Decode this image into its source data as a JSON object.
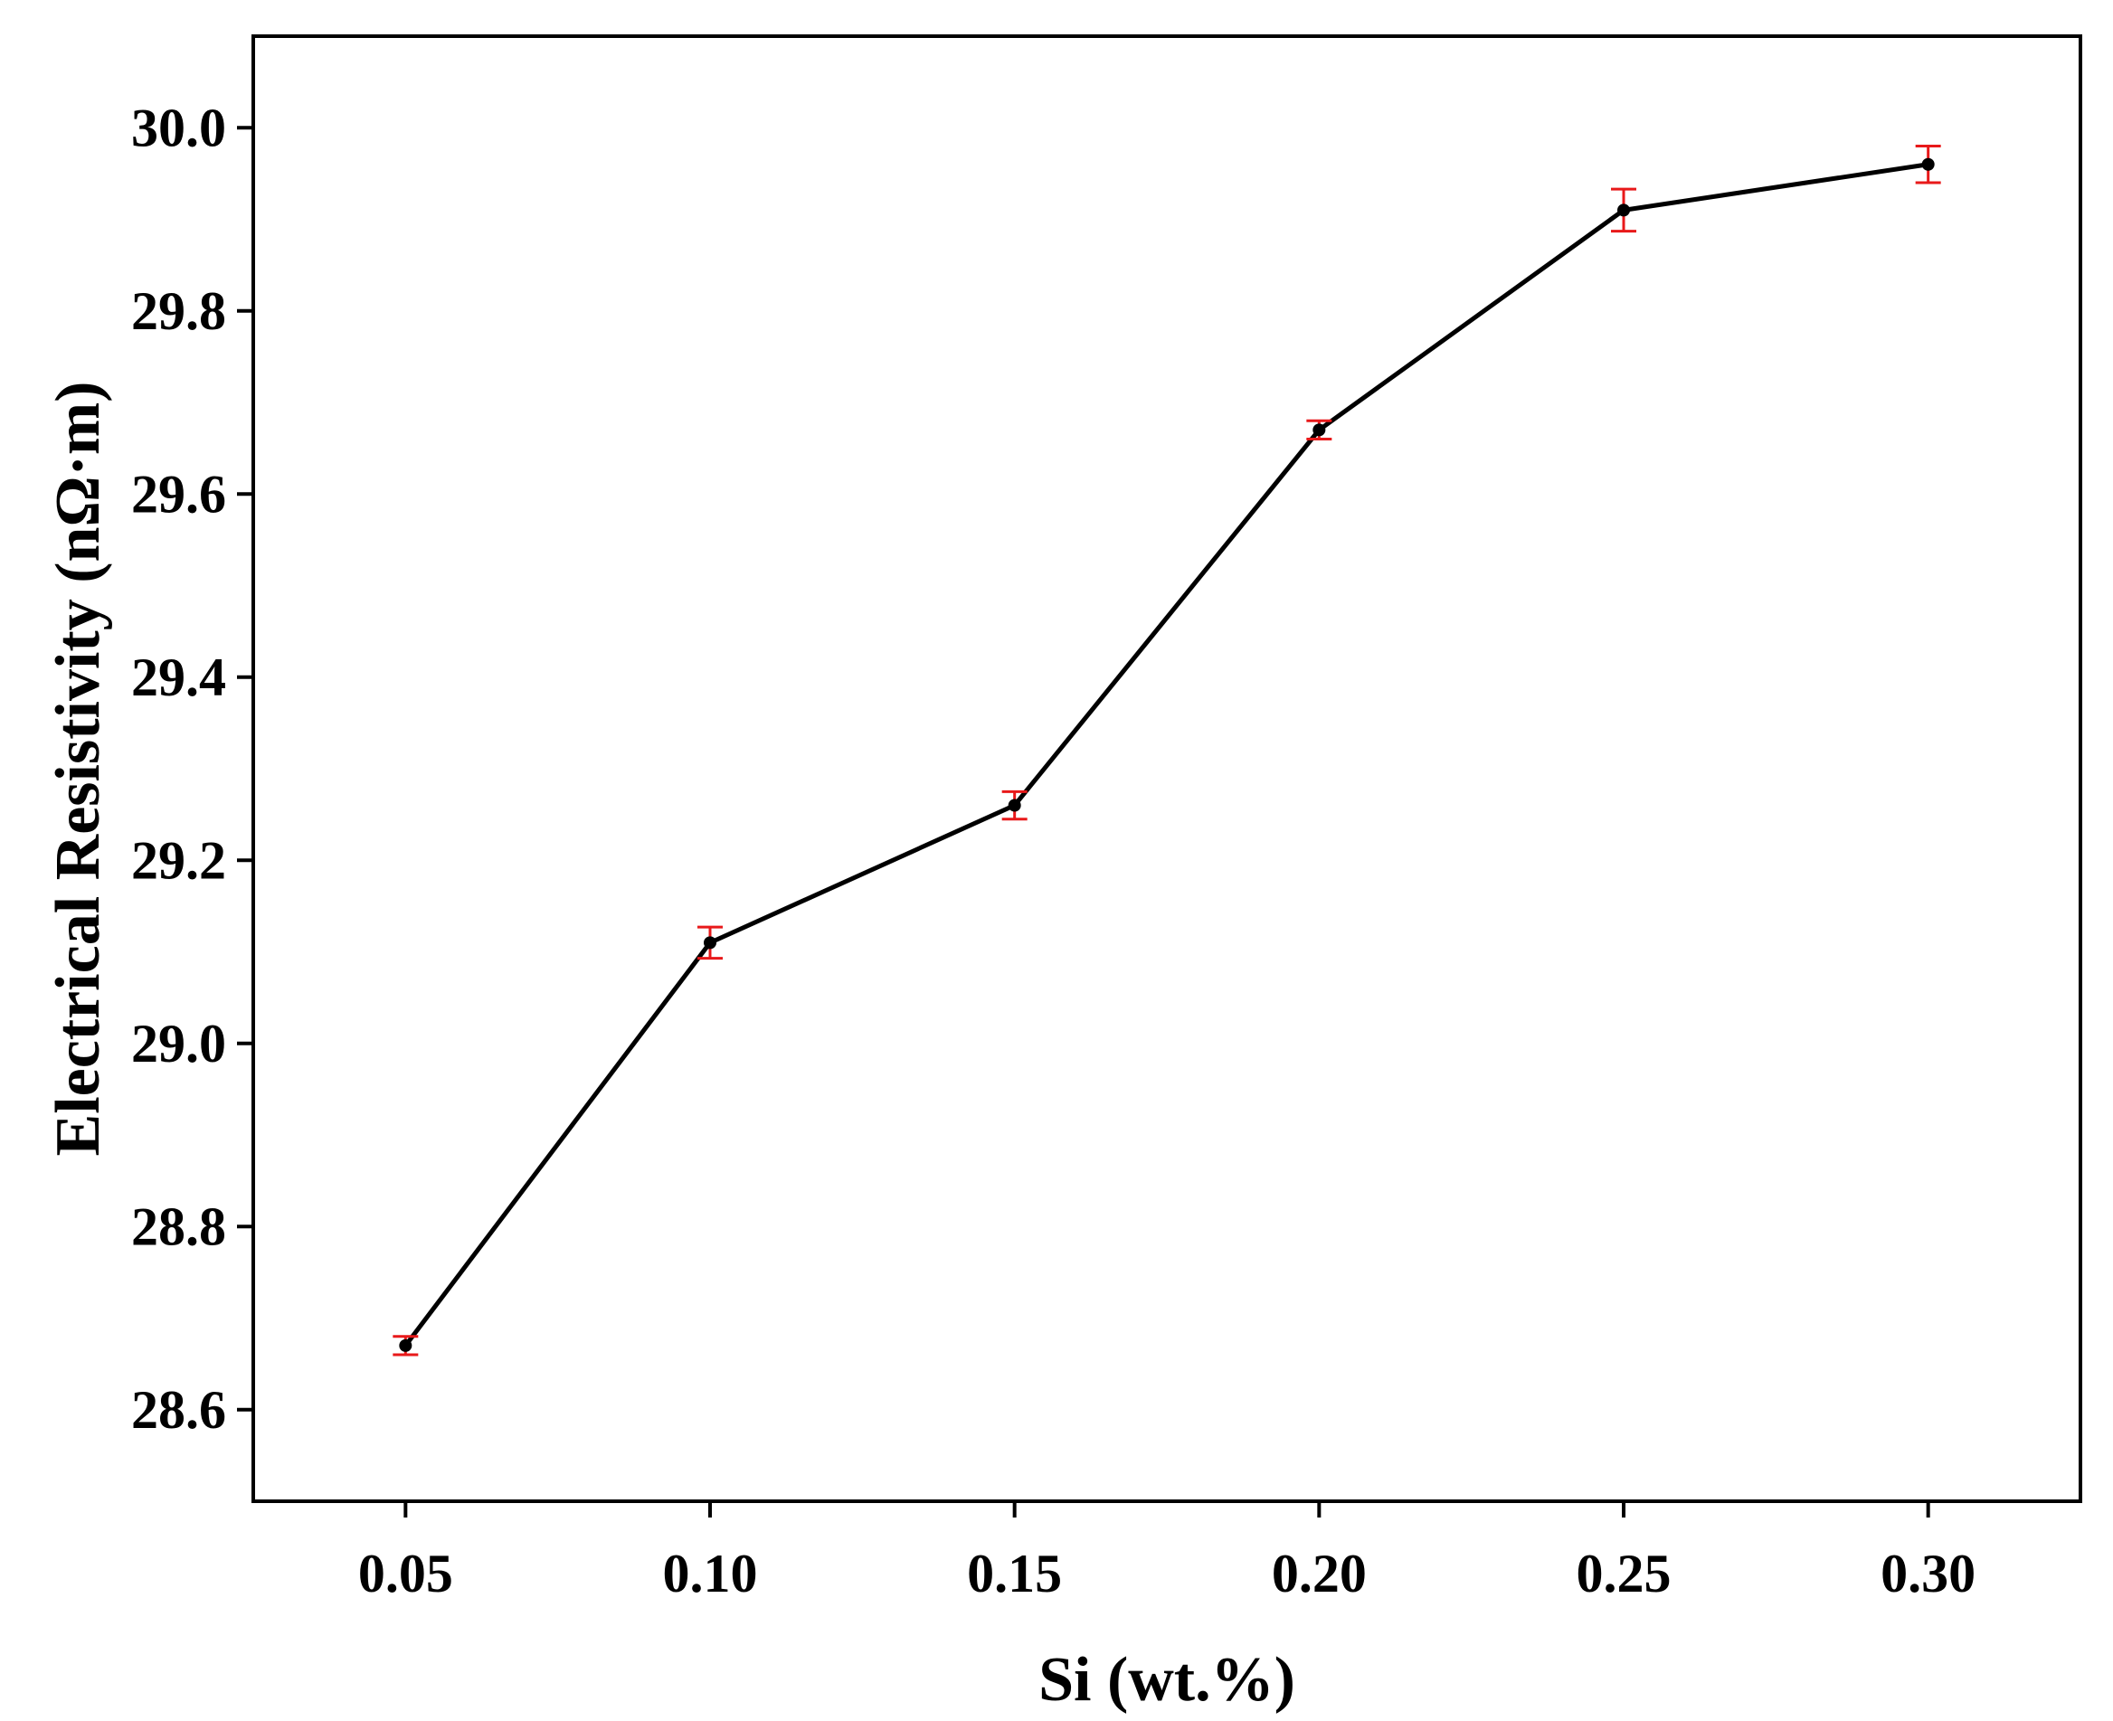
{
  "chart_data": {
    "type": "line",
    "title": "",
    "xlabel": "Si (wt.%)",
    "ylabel": "Electrical Resistivity (nΩ·m)",
    "xlim": [
      0.025,
      0.325
    ],
    "ylim": [
      28.5,
      30.1
    ],
    "x_ticks": [
      0.05,
      0.1,
      0.15,
      0.2,
      0.25,
      0.3
    ],
    "x_tick_labels": [
      "0.05",
      "0.10",
      "0.15",
      "0.20",
      "0.25",
      "0.30"
    ],
    "y_ticks": [
      28.6,
      28.8,
      29.0,
      29.2,
      29.4,
      29.6,
      29.8,
      30.0
    ],
    "y_tick_labels": [
      "28.6",
      "28.8",
      "29.0",
      "29.2",
      "29.4",
      "29.6",
      "29.8",
      "30.0"
    ],
    "grid": false,
    "legend": "none",
    "series": [
      {
        "x": [
          0.05,
          0.1,
          0.15,
          0.2,
          0.25,
          0.3
        ],
        "y": [
          28.67,
          29.11,
          29.26,
          29.67,
          29.91,
          29.96
        ],
        "error": [
          0.01,
          0.017,
          0.015,
          0.01,
          0.023,
          0.02
        ],
        "line_color": "#000000",
        "marker_color": "#000000",
        "error_color": "#e8191a"
      }
    ]
  }
}
